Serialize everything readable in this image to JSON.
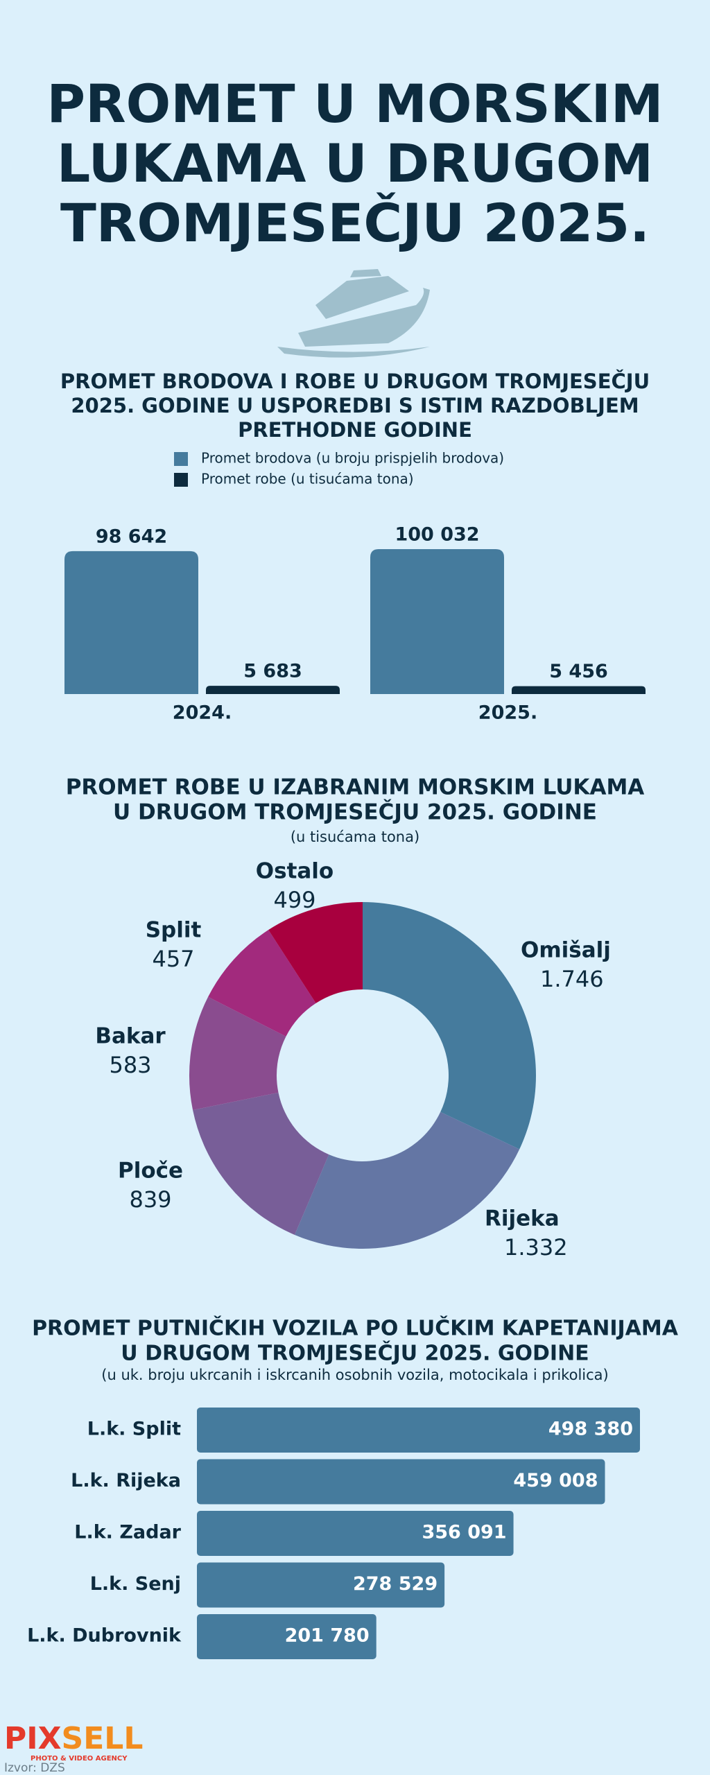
{
  "title": [
    "PROMET U MORSKIM",
    "LUKAMA U DRUGOM",
    "TROMJESEČJU 2025."
  ],
  "chart_data": [
    {
      "type": "bar",
      "title": [
        "PROMET BRODOVA I ROBE U DRUGOM TROMJESEČJU",
        "2025. GODINE U USPOREDBI S ISTIM RAZDOBLJEM",
        "PRETHODNE GODINE"
      ],
      "categories": [
        "2024.",
        "2025."
      ],
      "series": [
        {
          "name": "Promet brodova (u broju prispjelih brodova)",
          "color": "#457b9d",
          "values": [
            98642,
            100032
          ],
          "value_labels": [
            "98 642",
            "100 032"
          ]
        },
        {
          "name": "Promet robe (u tisućama tona)",
          "color": "#0d2b3e",
          "values": [
            5683,
            5456
          ],
          "value_labels": [
            "5 683",
            "5 456"
          ]
        }
      ]
    },
    {
      "type": "pie",
      "title": [
        "PROMET ROBE U IZABRANIM MORSKIM LUKAMA",
        "U DRUGOM TROMJESEČJU 2025. GODINE"
      ],
      "subtitle": "(u tisućama tona)",
      "categories": [
        "Omišalj",
        "Rijeka",
        "Ploče",
        "Bakar",
        "Split",
        "Ostalo"
      ],
      "values": [
        1746,
        1332,
        839,
        583,
        457,
        499
      ],
      "value_labels": [
        "1.746",
        "1.332",
        "839",
        "583",
        "457",
        "499"
      ],
      "colors": [
        "#457b9d",
        "#6476a4",
        "#785e98",
        "#8a4c8f",
        "#a22a7d",
        "#a8003e"
      ]
    },
    {
      "type": "hbar",
      "title": [
        "PROMET PUTNIČKIH VOZILA PO LUČKIM KAPETANIJAMA",
        "U DRUGOM TROMJESEČJU 2025. GODINE"
      ],
      "subtitle": "(u uk. broju ukrcanih i iskrcanih osobnih vozila, motocikala i prikolica)",
      "categories": [
        "L.k. Split",
        "L.k. Rijeka",
        "L.k. Zadar",
        "L.k. Senj",
        "L.k. Dubrovnik"
      ],
      "values": [
        498380,
        459008,
        356091,
        278529,
        201780
      ],
      "value_labels": [
        "498 380",
        "459 008",
        "356 091",
        "278 529",
        "201 780"
      ],
      "color": "#457b9d"
    }
  ],
  "logo": {
    "name": "PIXSELL",
    "tagline": "PHOTO & VIDEO AGENCY"
  },
  "source": "Izvor: DZS"
}
